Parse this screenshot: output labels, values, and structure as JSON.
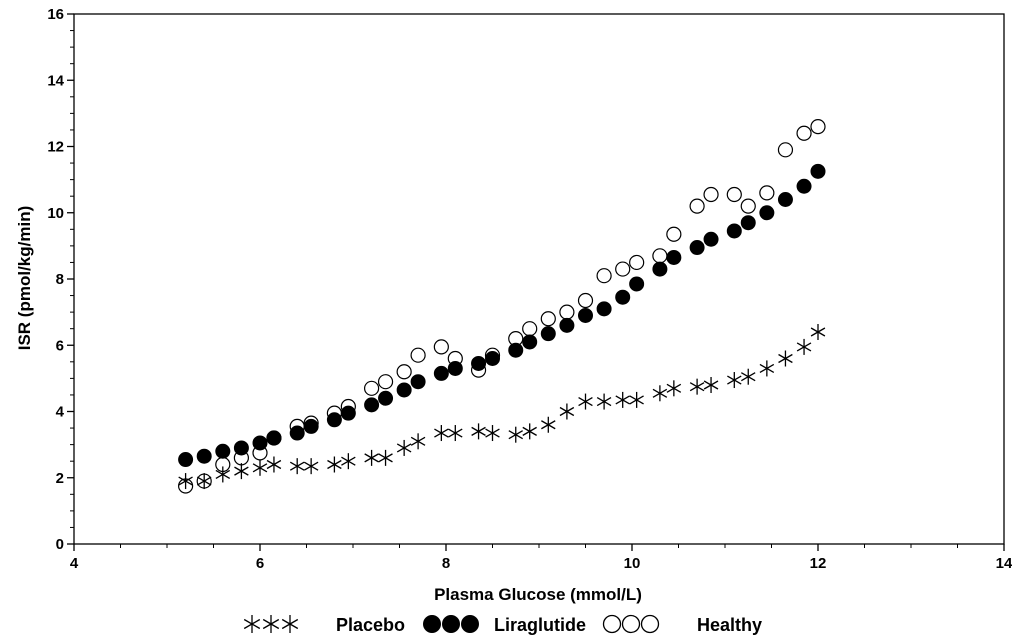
{
  "chart_data": {
    "type": "scatter",
    "xlabel": "Plasma Glucose (mmol/L)",
    "ylabel": "ISR (pmol/kg/min)",
    "xlim": [
      4,
      14
    ],
    "ylim": [
      0,
      16
    ],
    "x_ticks": [
      4,
      6,
      8,
      10,
      12,
      14
    ],
    "y_ticks": [
      0,
      2,
      4,
      6,
      8,
      10,
      12,
      14,
      16
    ],
    "grid": false,
    "legend_position": "bottom",
    "series": [
      {
        "name": "Placebo",
        "marker": "asterisk",
        "points": [
          [
            5.2,
            1.9
          ],
          [
            5.4,
            1.9
          ],
          [
            5.6,
            2.1
          ],
          [
            5.8,
            2.2
          ],
          [
            6.0,
            2.3
          ],
          [
            6.15,
            2.4
          ],
          [
            6.4,
            2.35
          ],
          [
            6.55,
            2.35
          ],
          [
            6.8,
            2.4
          ],
          [
            6.95,
            2.5
          ],
          [
            7.2,
            2.6
          ],
          [
            7.35,
            2.6
          ],
          [
            7.55,
            2.9
          ],
          [
            7.7,
            3.1
          ],
          [
            7.95,
            3.35
          ],
          [
            8.1,
            3.35
          ],
          [
            8.35,
            3.4
          ],
          [
            8.5,
            3.35
          ],
          [
            8.75,
            3.3
          ],
          [
            8.9,
            3.4
          ],
          [
            9.1,
            3.6
          ],
          [
            9.3,
            4.0
          ],
          [
            9.5,
            4.3
          ],
          [
            9.7,
            4.3
          ],
          [
            9.9,
            4.35
          ],
          [
            10.05,
            4.35
          ],
          [
            10.3,
            4.55
          ],
          [
            10.45,
            4.7
          ],
          [
            10.7,
            4.75
          ],
          [
            10.85,
            4.8
          ],
          [
            11.1,
            4.95
          ],
          [
            11.25,
            5.05
          ],
          [
            11.45,
            5.3
          ],
          [
            11.65,
            5.6
          ],
          [
            11.85,
            5.95
          ],
          [
            12.0,
            6.4
          ]
        ]
      },
      {
        "name": "Liraglutide",
        "marker": "filled-circle",
        "points": [
          [
            5.2,
            2.55
          ],
          [
            5.4,
            2.65
          ],
          [
            5.6,
            2.8
          ],
          [
            5.8,
            2.9
          ],
          [
            6.0,
            3.05
          ],
          [
            6.15,
            3.2
          ],
          [
            6.4,
            3.35
          ],
          [
            6.55,
            3.55
          ],
          [
            6.8,
            3.75
          ],
          [
            6.95,
            3.95
          ],
          [
            7.2,
            4.2
          ],
          [
            7.35,
            4.4
          ],
          [
            7.55,
            4.65
          ],
          [
            7.7,
            4.9
          ],
          [
            7.95,
            5.15
          ],
          [
            8.1,
            5.3
          ],
          [
            8.35,
            5.45
          ],
          [
            8.5,
            5.6
          ],
          [
            8.75,
            5.85
          ],
          [
            8.9,
            6.1
          ],
          [
            9.1,
            6.35
          ],
          [
            9.3,
            6.6
          ],
          [
            9.5,
            6.9
          ],
          [
            9.7,
            7.1
          ],
          [
            9.9,
            7.45
          ],
          [
            10.05,
            7.85
          ],
          [
            10.3,
            8.3
          ],
          [
            10.45,
            8.65
          ],
          [
            10.7,
            8.95
          ],
          [
            10.85,
            9.2
          ],
          [
            11.1,
            9.45
          ],
          [
            11.25,
            9.7
          ],
          [
            11.45,
            10.0
          ],
          [
            11.65,
            10.4
          ],
          [
            11.85,
            10.8
          ],
          [
            12.0,
            11.25
          ]
        ]
      },
      {
        "name": "Healthy",
        "marker": "open-circle",
        "points": [
          [
            5.2,
            1.75
          ],
          [
            5.4,
            1.9
          ],
          [
            5.6,
            2.4
          ],
          [
            5.8,
            2.6
          ],
          [
            6.0,
            2.75
          ],
          [
            6.15,
            3.2
          ],
          [
            6.4,
            3.55
          ],
          [
            6.55,
            3.65
          ],
          [
            6.8,
            3.95
          ],
          [
            6.95,
            4.15
          ],
          [
            7.2,
            4.7
          ],
          [
            7.35,
            4.9
          ],
          [
            7.55,
            5.2
          ],
          [
            7.7,
            5.7
          ],
          [
            7.95,
            5.95
          ],
          [
            8.1,
            5.6
          ],
          [
            8.35,
            5.25
          ],
          [
            8.5,
            5.7
          ],
          [
            8.75,
            6.2
          ],
          [
            8.9,
            6.5
          ],
          [
            9.1,
            6.8
          ],
          [
            9.3,
            7.0
          ],
          [
            9.5,
            7.35
          ],
          [
            9.7,
            8.1
          ],
          [
            9.9,
            8.3
          ],
          [
            10.05,
            8.5
          ],
          [
            10.3,
            8.7
          ],
          [
            10.45,
            9.35
          ],
          [
            10.7,
            10.2
          ],
          [
            10.85,
            10.55
          ],
          [
            11.1,
            10.55
          ],
          [
            11.25,
            10.2
          ],
          [
            11.45,
            10.6
          ],
          [
            11.65,
            11.9
          ],
          [
            11.85,
            12.4
          ],
          [
            12.0,
            12.6
          ]
        ]
      }
    ]
  }
}
